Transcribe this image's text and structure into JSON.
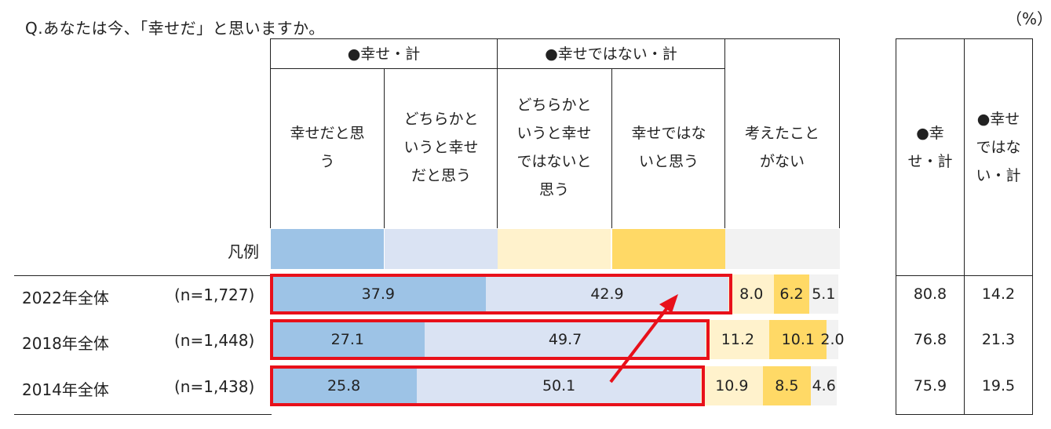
{
  "question": "Q.あなたは今、「幸せだ」と思いますか。",
  "unit": "（%）",
  "groups": {
    "happy": "●幸せ・計",
    "unhappy": "●幸せではない・計"
  },
  "columns": [
    {
      "label": "幸せだと思う",
      "lines": [
        "幸せだと思",
        "う"
      ]
    },
    {
      "label": "どちらかというと幸せだと思う",
      "lines": [
        "どちらかと",
        "いうと幸せ",
        "だと思う"
      ]
    },
    {
      "label": "どちらかというと幸せではないと思う",
      "lines": [
        "どちらかと",
        "いうと幸せ",
        "ではないと",
        "思う"
      ]
    },
    {
      "label": "幸せではないと思う",
      "lines": [
        "幸せではな",
        "いと思う"
      ]
    },
    {
      "label": "考えたことがない",
      "lines": [
        "考えたこと",
        "がない"
      ]
    }
  ],
  "summary_headers": {
    "happy_lines": [
      "●幸",
      "せ・計"
    ],
    "unhappy_lines": [
      "●幸せ",
      "ではな",
      "い・計"
    ]
  },
  "legend_label": "凡例",
  "colors": [
    "#9dc3e6",
    "#dae3f3",
    "#fff2cc",
    "#ffd966",
    "#f2f2f2"
  ],
  "highlight_color": "#e8101a",
  "chart_data": {
    "type": "bar",
    "orientation": "horizontal-stacked",
    "x_range": [
      0,
      100
    ],
    "series": [
      {
        "name": "幸せだと思う",
        "values": [
          37.9,
          27.1,
          25.8
        ]
      },
      {
        "name": "どちらかというと幸せだと思う",
        "values": [
          42.9,
          49.7,
          50.1
        ]
      },
      {
        "name": "どちらかというと幸せではないと思う",
        "values": [
          8.0,
          11.2,
          10.9
        ]
      },
      {
        "name": "幸せではないと思う",
        "values": [
          6.2,
          10.1,
          8.5
        ]
      },
      {
        "name": "考えたことがない",
        "values": [
          5.1,
          2.0,
          4.6
        ]
      }
    ],
    "rows": [
      {
        "label": "2022年全体",
        "n": "(n=1,727)",
        "labels": [
          "37.9",
          "42.9",
          "8.0",
          "6.2",
          "5.1"
        ],
        "happy_total": "80.8",
        "unhappy_total": "14.2"
      },
      {
        "label": "2018年全体",
        "n": "(n=1,448)",
        "labels": [
          "27.1",
          "49.7",
          "11.2",
          "10.1",
          "2.0"
        ],
        "happy_total": "76.8",
        "unhappy_total": "21.3"
      },
      {
        "label": "2014年全体",
        "n": "(n=1,438)",
        "labels": [
          "25.8",
          "50.1",
          "10.9",
          "8.5",
          "4.6"
        ],
        "happy_total": "75.9",
        "unhappy_total": "19.5"
      }
    ]
  }
}
